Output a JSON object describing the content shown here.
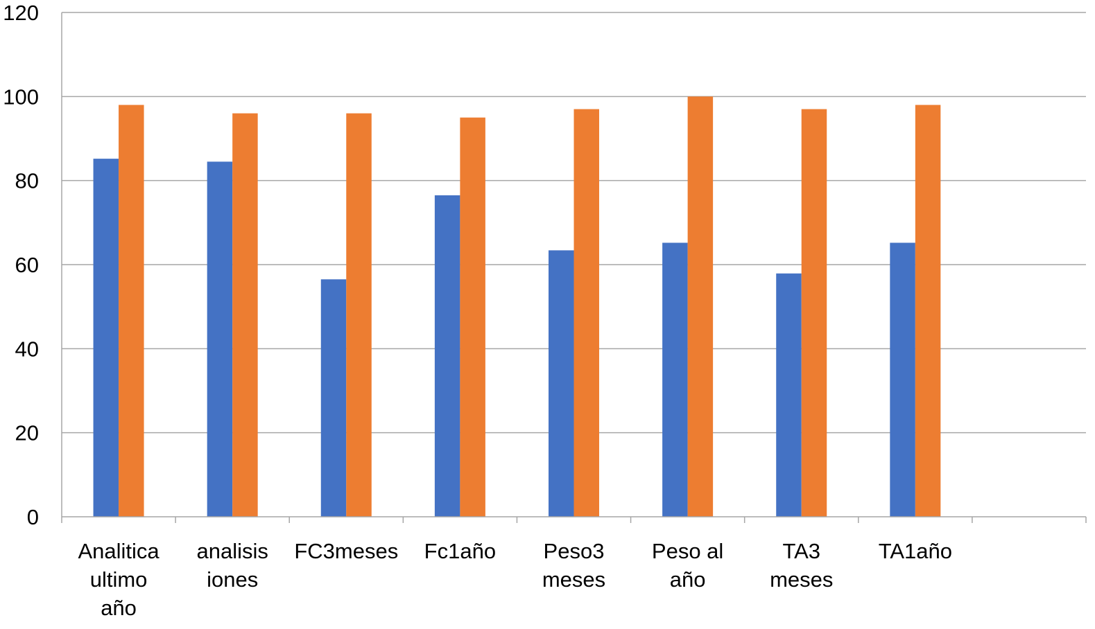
{
  "chart_data": {
    "type": "bar",
    "title": "",
    "xlabel": "",
    "ylabel": "",
    "ylim": [
      0,
      120
    ],
    "y_ticks": [
      "0",
      "20",
      "40",
      "60",
      "80",
      "100",
      "120"
    ],
    "grid": true,
    "legend": "none",
    "category_slots": 9,
    "categories": [
      [
        "Analitica",
        "ultimo",
        "año"
      ],
      [
        "analisis",
        "iones"
      ],
      [
        "FC3meses"
      ],
      [
        "Fc1año"
      ],
      [
        "Peso3",
        "meses"
      ],
      [
        "Peso al",
        "año"
      ],
      [
        "TA3",
        "meses"
      ],
      [
        "TA1año"
      ]
    ],
    "series": [
      {
        "color": "#4472C4",
        "values": [
          85.2,
          84.5,
          56.5,
          76.5,
          63.4,
          65.2,
          57.9,
          65.2
        ]
      },
      {
        "color": "#ED7D31",
        "values": [
          98,
          96,
          96,
          95,
          97,
          100,
          97,
          98
        ]
      }
    ]
  }
}
